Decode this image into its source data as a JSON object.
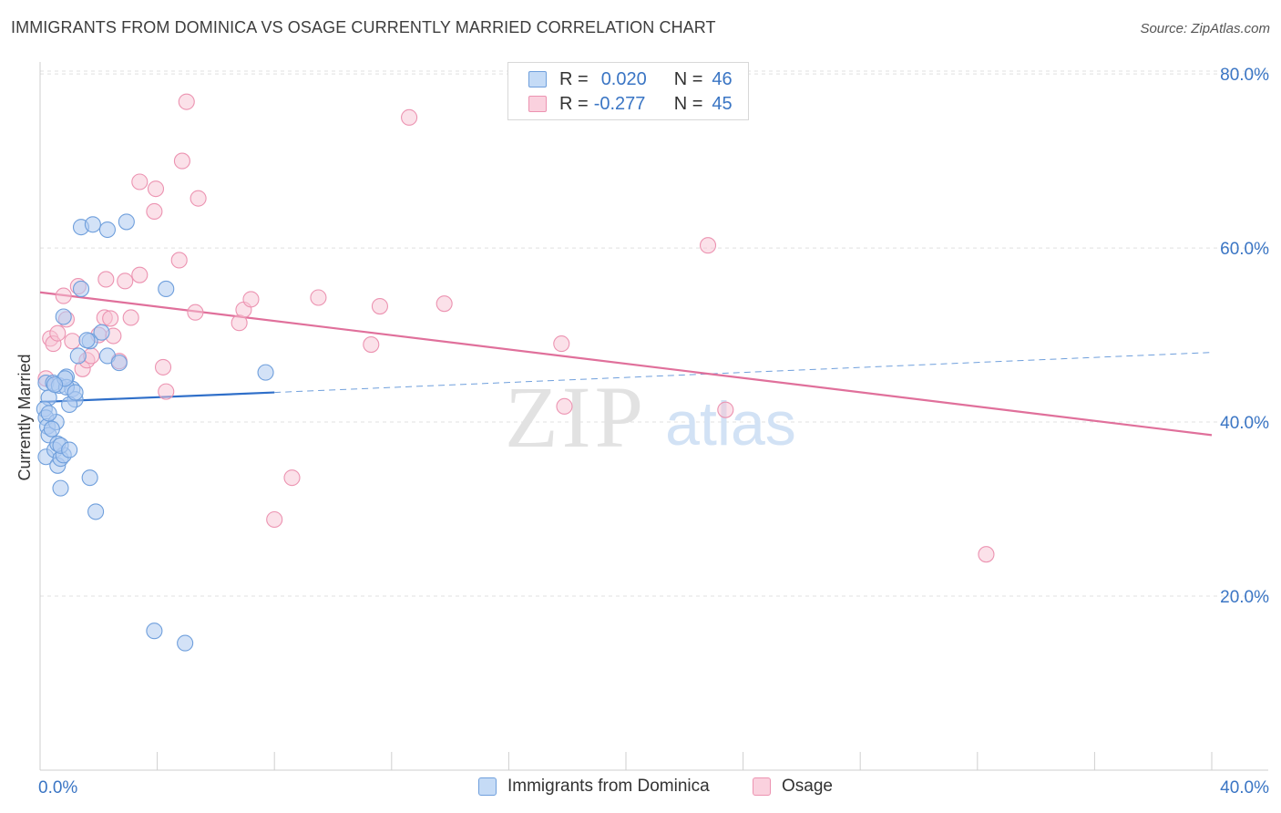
{
  "header": {
    "title": "IMMIGRANTS FROM DOMINICA VS OSAGE CURRENTLY MARRIED CORRELATION CHART",
    "source": "Source: ZipAtlas.com"
  },
  "watermark": {
    "zip": "ZIP",
    "atlas": "atlas"
  },
  "legend": {
    "r_label": "R =",
    "n_label": "N =",
    "rows": [
      {
        "r": "0.020",
        "n": "46"
      },
      {
        "r": "-0.277",
        "n": "45"
      }
    ]
  },
  "bottom_legend": [
    "Immigrants from Dominica",
    "Osage"
  ],
  "colors": {
    "blue_fill": "#aecbf0",
    "blue_stroke": "#6f9fdc",
    "blue_line": "#2f6fc9",
    "pink_fill": "#f8c3d3",
    "pink_stroke": "#ec93b1",
    "pink_line": "#e0709b",
    "axis_text": "#3a75c4"
  },
  "chart_data": {
    "type": "scatter",
    "title": "IMMIGRANTS FROM DOMINICA VS OSAGE CURRENTLY MARRIED CORRELATION CHART",
    "xlabel": "",
    "ylabel": "Currently Married",
    "xlim": [
      0,
      40
    ],
    "ylim": [
      0,
      82
    ],
    "x_ticks": [
      {
        "value": 0,
        "label": "0.0%"
      },
      {
        "value": 40,
        "label": "40.0%"
      }
    ],
    "y_ticks": [
      {
        "value": 20,
        "label": "20.0%"
      },
      {
        "value": 40,
        "label": "40.0%"
      },
      {
        "value": 60,
        "label": "60.0%"
      },
      {
        "value": 80,
        "label": "80.0%"
      }
    ],
    "series": [
      {
        "name": "Immigrants from Dominica",
        "color": "blue",
        "r": 0.02,
        "n": 46,
        "trend": {
          "x0": 0,
          "y0": 42.3,
          "x1": 8.0,
          "y1": 43.4,
          "dash_x1": 40,
          "dash_y1": 48.0
        },
        "points": [
          [
            0.2,
            44.5
          ],
          [
            0.3,
            42.8
          ],
          [
            0.15,
            41.5
          ],
          [
            0.2,
            40.5
          ],
          [
            0.25,
            39.5
          ],
          [
            0.3,
            38.5
          ],
          [
            0.2,
            36.0
          ],
          [
            0.5,
            36.8
          ],
          [
            0.6,
            35.0
          ],
          [
            0.7,
            35.8
          ],
          [
            0.8,
            36.2
          ],
          [
            0.6,
            37.5
          ],
          [
            0.7,
            37.3
          ],
          [
            1.0,
            36.8
          ],
          [
            0.55,
            40.0
          ],
          [
            0.4,
            39.2
          ],
          [
            0.45,
            44.5
          ],
          [
            0.65,
            44.2
          ],
          [
            0.9,
            45.2
          ],
          [
            1.1,
            43.8
          ],
          [
            1.2,
            42.6
          ],
          [
            1.0,
            42.0
          ],
          [
            0.9,
            44.0
          ],
          [
            1.3,
            47.6
          ],
          [
            1.7,
            49.3
          ],
          [
            1.6,
            49.4
          ],
          [
            2.1,
            50.3
          ],
          [
            2.3,
            47.6
          ],
          [
            2.7,
            46.8
          ],
          [
            1.4,
            55.3
          ],
          [
            0.8,
            52.1
          ],
          [
            1.4,
            62.4
          ],
          [
            1.8,
            62.7
          ],
          [
            2.3,
            62.1
          ],
          [
            2.95,
            63.0
          ],
          [
            4.3,
            55.3
          ],
          [
            7.7,
            45.7
          ],
          [
            1.7,
            33.6
          ],
          [
            0.7,
            32.4
          ],
          [
            1.9,
            29.7
          ],
          [
            3.9,
            16.0
          ],
          [
            4.95,
            14.6
          ],
          [
            0.3,
            41.0
          ],
          [
            0.85,
            45.0
          ],
          [
            0.5,
            44.3
          ],
          [
            1.2,
            43.4
          ]
        ]
      },
      {
        "name": "Osage",
        "color": "pink",
        "r": -0.277,
        "n": 45,
        "trend": {
          "x0": 0,
          "y0": 54.9,
          "x1": 40,
          "y1": 38.5
        },
        "points": [
          [
            0.2,
            45.0
          ],
          [
            0.35,
            49.6
          ],
          [
            0.45,
            49.0
          ],
          [
            0.6,
            50.2
          ],
          [
            0.8,
            54.5
          ],
          [
            0.9,
            51.8
          ],
          [
            1.1,
            49.3
          ],
          [
            1.3,
            55.6
          ],
          [
            1.45,
            46.1
          ],
          [
            1.6,
            47.1
          ],
          [
            1.75,
            47.6
          ],
          [
            2.0,
            50.0
          ],
          [
            2.2,
            52.0
          ],
          [
            2.25,
            56.4
          ],
          [
            2.4,
            51.9
          ],
          [
            2.5,
            49.9
          ],
          [
            2.7,
            47.0
          ],
          [
            2.9,
            56.2
          ],
          [
            3.1,
            52.0
          ],
          [
            3.4,
            56.9
          ],
          [
            3.4,
            67.6
          ],
          [
            3.9,
            64.2
          ],
          [
            3.95,
            66.8
          ],
          [
            4.2,
            46.3
          ],
          [
            4.3,
            43.5
          ],
          [
            4.75,
            58.6
          ],
          [
            4.85,
            70.0
          ],
          [
            5.0,
            76.8
          ],
          [
            5.3,
            52.6
          ],
          [
            5.4,
            65.7
          ],
          [
            6.8,
            51.4
          ],
          [
            6.95,
            52.9
          ],
          [
            7.2,
            54.1
          ],
          [
            8.0,
            28.8
          ],
          [
            8.6,
            33.6
          ],
          [
            9.5,
            54.3
          ],
          [
            11.3,
            48.9
          ],
          [
            11.6,
            53.3
          ],
          [
            12.6,
            75.0
          ],
          [
            13.8,
            53.6
          ],
          [
            17.8,
            49.0
          ],
          [
            17.9,
            41.8
          ],
          [
            22.8,
            60.3
          ],
          [
            23.4,
            41.4
          ],
          [
            32.3,
            24.8
          ]
        ]
      }
    ]
  }
}
